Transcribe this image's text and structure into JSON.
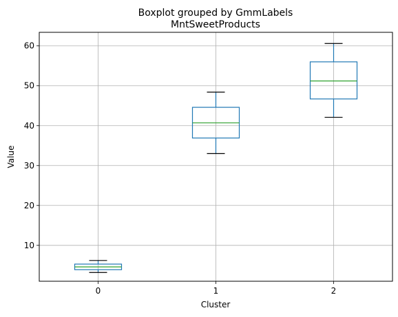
{
  "chart_data": {
    "type": "boxplot",
    "suptitle": "Boxplot grouped by GmmLabels",
    "title": "MntSweetProducts",
    "xlabel": "Cluster",
    "ylabel": "Value",
    "categories": [
      "0",
      "1",
      "2"
    ],
    "boxes": [
      {
        "category": "0",
        "whisker_low": 3.2,
        "q1": 3.9,
        "median": 4.6,
        "q3": 5.3,
        "whisker_high": 6.2
      },
      {
        "category": "1",
        "whisker_low": 33.0,
        "q1": 36.9,
        "median": 40.7,
        "q3": 44.6,
        "whisker_high": 48.4
      },
      {
        "category": "2",
        "whisker_low": 42.1,
        "q1": 46.7,
        "median": 51.2,
        "q3": 56.0,
        "whisker_high": 60.6
      }
    ],
    "ylim": [
      1.0,
      63.4
    ],
    "yticks": [
      10,
      20,
      30,
      40,
      50,
      60
    ],
    "grid": true,
    "colors": {
      "box": "#1f77b4",
      "median": "#2ca02c",
      "whisker_cap": "#000000",
      "grid": "#b0b0b0"
    }
  }
}
